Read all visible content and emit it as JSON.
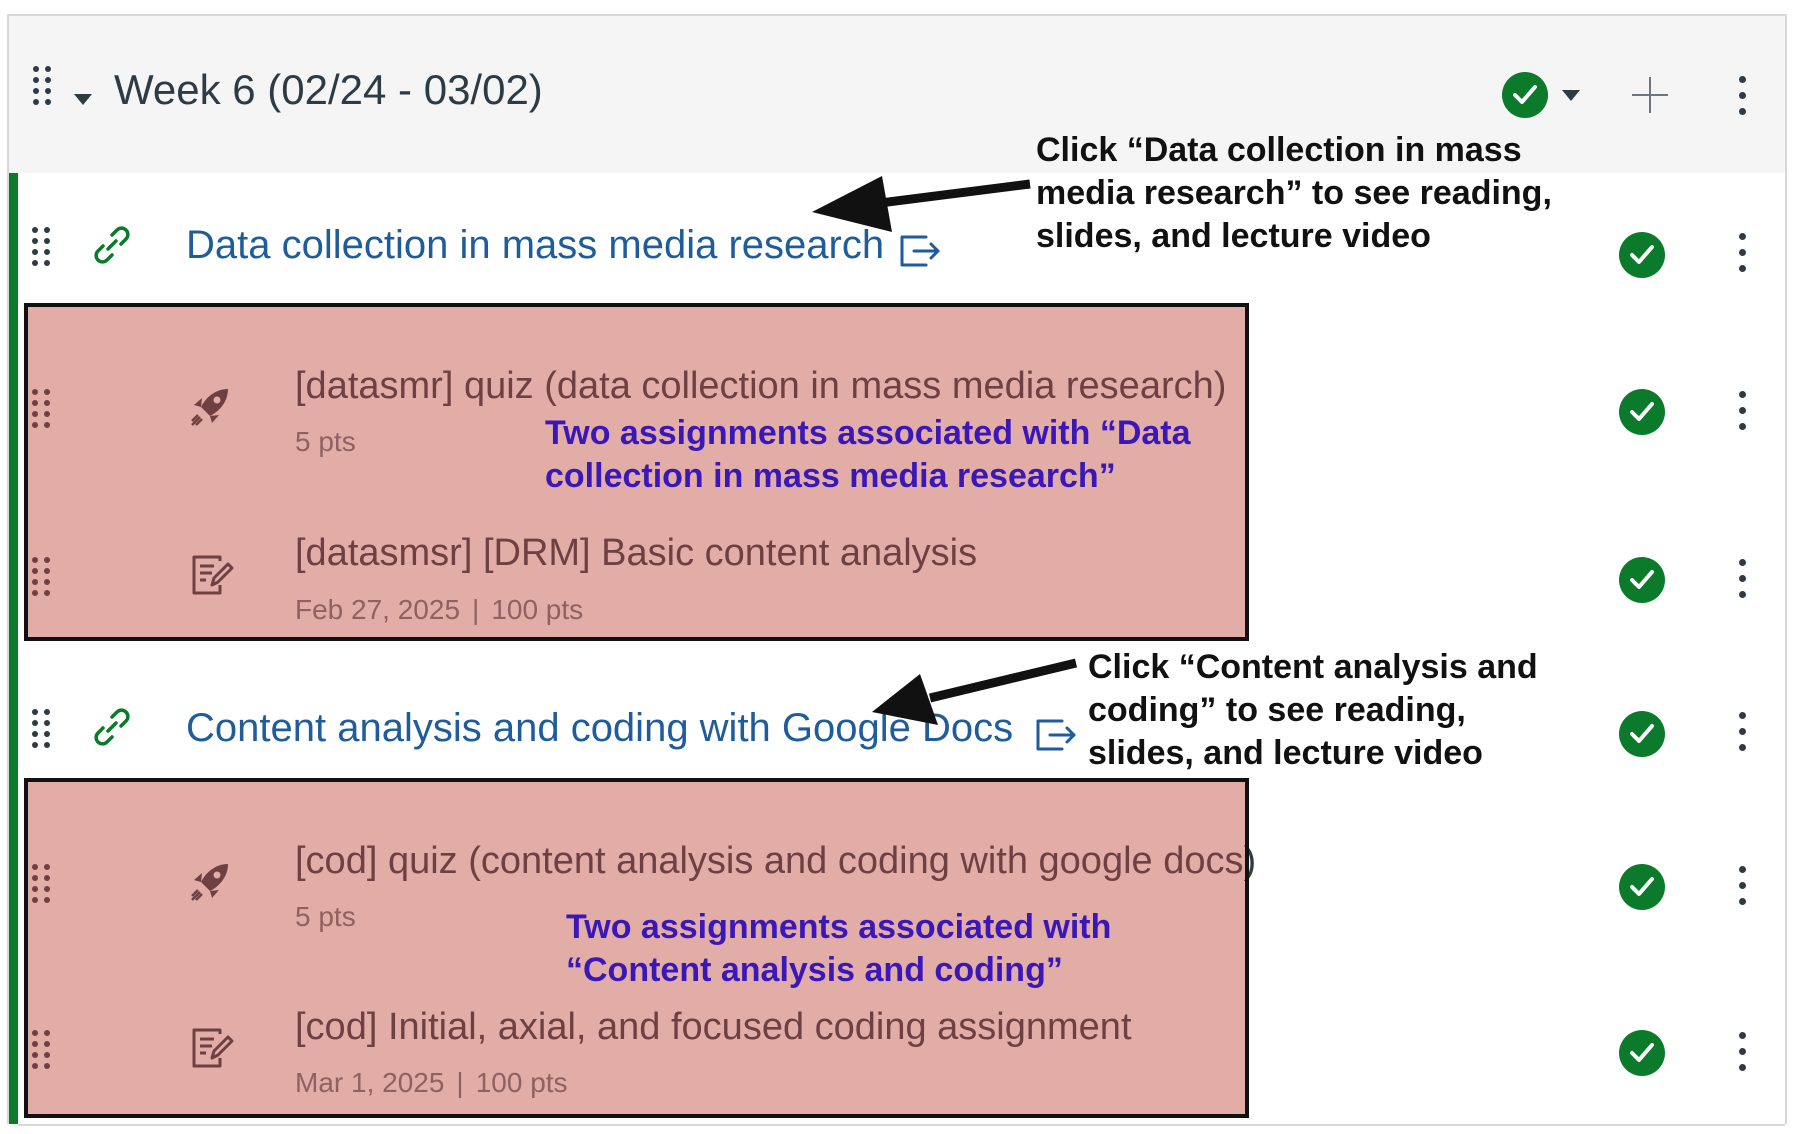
{
  "module": {
    "title": "Week 6 (02/24 - 03/02)",
    "status_icon": "published-check-icon",
    "accent_color": "#0b7a2b"
  },
  "items": [
    {
      "title": "Data collection in mass media research",
      "type": "link",
      "icon": "link-icon"
    },
    {
      "title": "[datasmr] quiz (data collection in mass media research)",
      "type": "quiz",
      "icon": "rocket-icon",
      "points": "5 pts"
    },
    {
      "title": "[datasmsr] [DRM] Basic content analysis",
      "type": "assignment",
      "icon": "assignment-icon",
      "date": "Feb 27, 2025",
      "separator": "|",
      "points": "100 pts"
    },
    {
      "title": "Content analysis and coding with Google Docs",
      "type": "link",
      "icon": "link-icon"
    },
    {
      "title": "[cod] quiz (content analysis and coding with google docs)",
      "type": "quiz",
      "icon": "rocket-icon",
      "points": "5 pts"
    },
    {
      "title": "[cod] Initial, axial, and focused coding assignment",
      "type": "assignment",
      "icon": "assignment-icon",
      "date": "Mar 1, 2025",
      "separator": "|",
      "points": "100 pts"
    }
  ],
  "annotations": {
    "first_link": [
      "Click “Data collection in mass",
      "media research” to see reading,",
      "slides, and lecture video"
    ],
    "first_group": [
      "Two assignments associated with “Data",
      "collection in mass media research”"
    ],
    "second_link": [
      "Click “Content analysis and",
      "coding” to see reading,",
      "slides, and lecture video"
    ],
    "second_group": [
      "Two assignments associated with",
      "“Content analysis and coding”"
    ]
  }
}
